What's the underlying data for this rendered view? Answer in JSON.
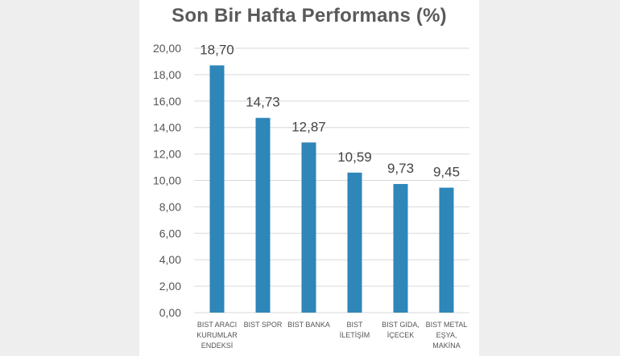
{
  "chart_data": {
    "type": "bar",
    "title": "Son Bir Hafta Performans (%)",
    "categories": [
      [
        "BIST ARACI",
        "KURUMLAR",
        "ENDEKSİ"
      ],
      [
        "BIST SPOR"
      ],
      [
        "BIST BANKA"
      ],
      [
        "BIST",
        "İLETİŞİM"
      ],
      [
        "BIST GIDA,",
        "İÇECEK"
      ],
      [
        "BIST METAL",
        "EŞYA,",
        "MAKİNA"
      ]
    ],
    "values": [
      18.7,
      14.73,
      12.87,
      10.59,
      9.73,
      9.45
    ],
    "value_labels": [
      "18,70",
      "14,73",
      "12,87",
      "10,59",
      "9,73",
      "9,45"
    ],
    "ylim": [
      0,
      20
    ],
    "yticks": [
      "0,00",
      "2,00",
      "4,00",
      "6,00",
      "8,00",
      "10,00",
      "12,00",
      "14,00",
      "16,00",
      "18,00",
      "20,00"
    ],
    "grid": true,
    "bar_color": "#2e86b9"
  }
}
